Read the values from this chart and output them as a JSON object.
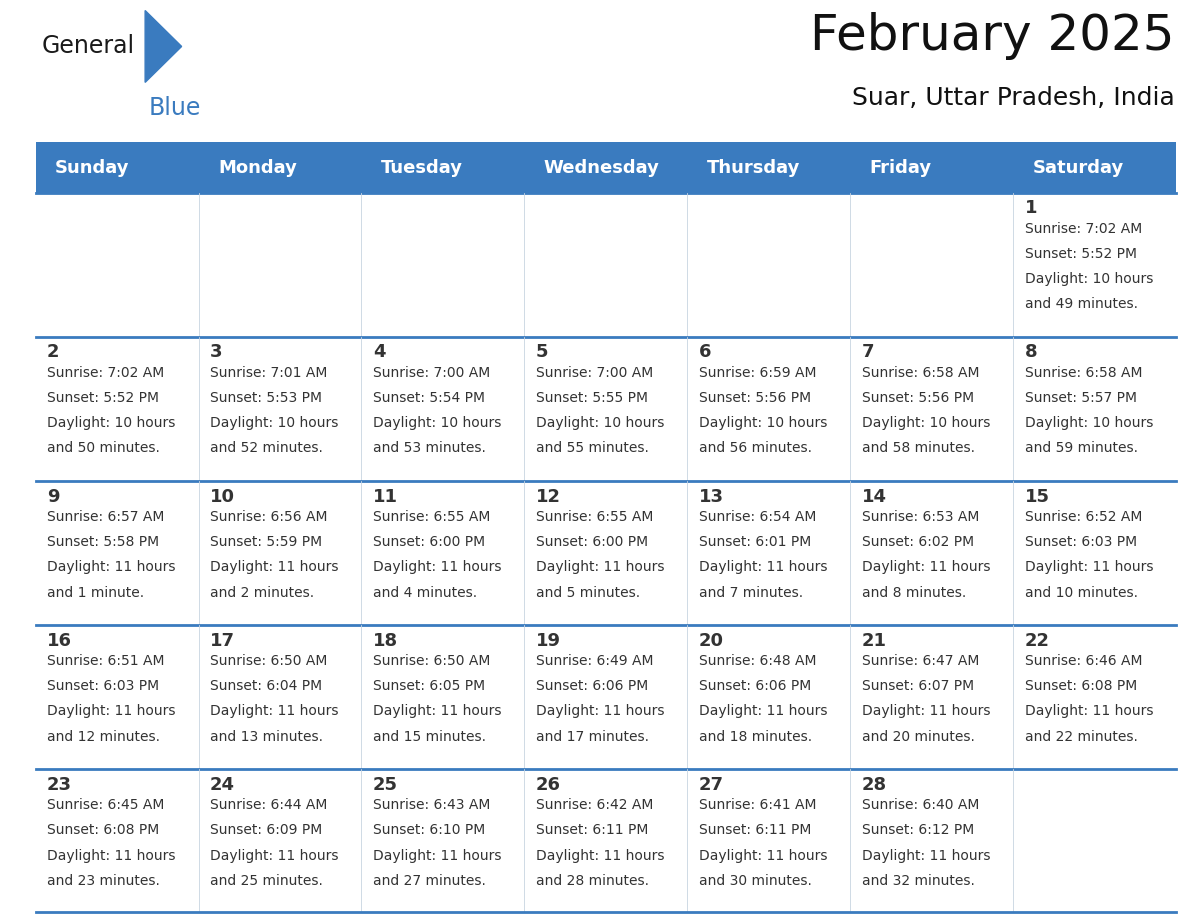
{
  "title": "February 2025",
  "subtitle": "Suar, Uttar Pradesh, India",
  "days_of_week": [
    "Sunday",
    "Monday",
    "Tuesday",
    "Wednesday",
    "Thursday",
    "Friday",
    "Saturday"
  ],
  "header_bg": "#3a7bbf",
  "header_text": "#ffffff",
  "row_bg_odd": "#f0f4f8",
  "row_bg_even": "#ffffff",
  "border_color": "#3a7bbf",
  "text_color": "#333333",
  "calendar_data": [
    {
      "day": 1,
      "col": 6,
      "row": 0,
      "sunrise": "7:02 AM",
      "sunset": "5:52 PM",
      "daylight": "10 hours and 49 minutes."
    },
    {
      "day": 2,
      "col": 0,
      "row": 1,
      "sunrise": "7:02 AM",
      "sunset": "5:52 PM",
      "daylight": "10 hours and 50 minutes."
    },
    {
      "day": 3,
      "col": 1,
      "row": 1,
      "sunrise": "7:01 AM",
      "sunset": "5:53 PM",
      "daylight": "10 hours and 52 minutes."
    },
    {
      "day": 4,
      "col": 2,
      "row": 1,
      "sunrise": "7:00 AM",
      "sunset": "5:54 PM",
      "daylight": "10 hours and 53 minutes."
    },
    {
      "day": 5,
      "col": 3,
      "row": 1,
      "sunrise": "7:00 AM",
      "sunset": "5:55 PM",
      "daylight": "10 hours and 55 minutes."
    },
    {
      "day": 6,
      "col": 4,
      "row": 1,
      "sunrise": "6:59 AM",
      "sunset": "5:56 PM",
      "daylight": "10 hours and 56 minutes."
    },
    {
      "day": 7,
      "col": 5,
      "row": 1,
      "sunrise": "6:58 AM",
      "sunset": "5:56 PM",
      "daylight": "10 hours and 58 minutes."
    },
    {
      "day": 8,
      "col": 6,
      "row": 1,
      "sunrise": "6:58 AM",
      "sunset": "5:57 PM",
      "daylight": "10 hours and 59 minutes."
    },
    {
      "day": 9,
      "col": 0,
      "row": 2,
      "sunrise": "6:57 AM",
      "sunset": "5:58 PM",
      "daylight": "11 hours and 1 minute."
    },
    {
      "day": 10,
      "col": 1,
      "row": 2,
      "sunrise": "6:56 AM",
      "sunset": "5:59 PM",
      "daylight": "11 hours and 2 minutes."
    },
    {
      "day": 11,
      "col": 2,
      "row": 2,
      "sunrise": "6:55 AM",
      "sunset": "6:00 PM",
      "daylight": "11 hours and 4 minutes."
    },
    {
      "day": 12,
      "col": 3,
      "row": 2,
      "sunrise": "6:55 AM",
      "sunset": "6:00 PM",
      "daylight": "11 hours and 5 minutes."
    },
    {
      "day": 13,
      "col": 4,
      "row": 2,
      "sunrise": "6:54 AM",
      "sunset": "6:01 PM",
      "daylight": "11 hours and 7 minutes."
    },
    {
      "day": 14,
      "col": 5,
      "row": 2,
      "sunrise": "6:53 AM",
      "sunset": "6:02 PM",
      "daylight": "11 hours and 8 minutes."
    },
    {
      "day": 15,
      "col": 6,
      "row": 2,
      "sunrise": "6:52 AM",
      "sunset": "6:03 PM",
      "daylight": "11 hours and 10 minutes."
    },
    {
      "day": 16,
      "col": 0,
      "row": 3,
      "sunrise": "6:51 AM",
      "sunset": "6:03 PM",
      "daylight": "11 hours and 12 minutes."
    },
    {
      "day": 17,
      "col": 1,
      "row": 3,
      "sunrise": "6:50 AM",
      "sunset": "6:04 PM",
      "daylight": "11 hours and 13 minutes."
    },
    {
      "day": 18,
      "col": 2,
      "row": 3,
      "sunrise": "6:50 AM",
      "sunset": "6:05 PM",
      "daylight": "11 hours and 15 minutes."
    },
    {
      "day": 19,
      "col": 3,
      "row": 3,
      "sunrise": "6:49 AM",
      "sunset": "6:06 PM",
      "daylight": "11 hours and 17 minutes."
    },
    {
      "day": 20,
      "col": 4,
      "row": 3,
      "sunrise": "6:48 AM",
      "sunset": "6:06 PM",
      "daylight": "11 hours and 18 minutes."
    },
    {
      "day": 21,
      "col": 5,
      "row": 3,
      "sunrise": "6:47 AM",
      "sunset": "6:07 PM",
      "daylight": "11 hours and 20 minutes."
    },
    {
      "day": 22,
      "col": 6,
      "row": 3,
      "sunrise": "6:46 AM",
      "sunset": "6:08 PM",
      "daylight": "11 hours and 22 minutes."
    },
    {
      "day": 23,
      "col": 0,
      "row": 4,
      "sunrise": "6:45 AM",
      "sunset": "6:08 PM",
      "daylight": "11 hours and 23 minutes."
    },
    {
      "day": 24,
      "col": 1,
      "row": 4,
      "sunrise": "6:44 AM",
      "sunset": "6:09 PM",
      "daylight": "11 hours and 25 minutes."
    },
    {
      "day": 25,
      "col": 2,
      "row": 4,
      "sunrise": "6:43 AM",
      "sunset": "6:10 PM",
      "daylight": "11 hours and 27 minutes."
    },
    {
      "day": 26,
      "col": 3,
      "row": 4,
      "sunrise": "6:42 AM",
      "sunset": "6:11 PM",
      "daylight": "11 hours and 28 minutes."
    },
    {
      "day": 27,
      "col": 4,
      "row": 4,
      "sunrise": "6:41 AM",
      "sunset": "6:11 PM",
      "daylight": "11 hours and 30 minutes."
    },
    {
      "day": 28,
      "col": 5,
      "row": 4,
      "sunrise": "6:40 AM",
      "sunset": "6:12 PM",
      "daylight": "11 hours and 32 minutes."
    }
  ],
  "num_rows": 5,
  "num_cols": 7,
  "logo_text_general": "General",
  "logo_text_blue": "Blue",
  "logo_color_general": "#1a1a1a",
  "logo_color_blue": "#3a7bbf",
  "logo_triangle_color": "#3a7bbf",
  "title_fontsize": 36,
  "subtitle_fontsize": 18,
  "header_fontsize": 13,
  "day_num_fontsize": 13,
  "info_fontsize": 10
}
